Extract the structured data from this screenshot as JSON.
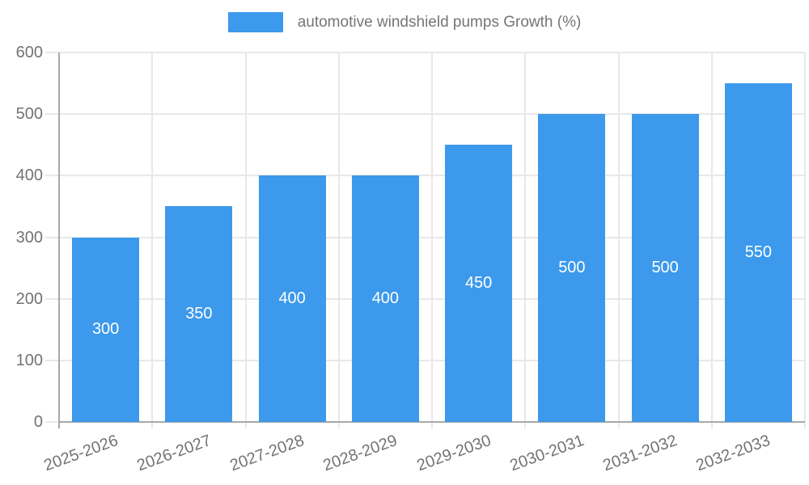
{
  "legend": {
    "label": "automotive windshield pumps Growth (%)"
  },
  "chart_data": {
    "type": "bar",
    "title": "automotive windshield pumps Growth (%)",
    "categories": [
      "2025-2026",
      "2026-2027",
      "2027-2028",
      "2028-2029",
      "2029-2030",
      "2030-2031",
      "2031-2032",
      "2032-2033"
    ],
    "series": [
      {
        "name": "automotive windshield pumps Growth (%)",
        "values": [
          300,
          350,
          400,
          400,
          450,
          500,
          500,
          550
        ]
      }
    ],
    "value_labels_shown": true,
    "xlabel": "",
    "ylabel": "",
    "ylim": [
      0,
      600
    ],
    "ytick_step": 100,
    "yticks": [
      0,
      100,
      200,
      300,
      400,
      500,
      600
    ],
    "grid": true,
    "legend_position": "top",
    "colors": {
      "bar": "#3C99EC",
      "grid": "#E8E8E8",
      "axis": "#A8A8A8",
      "tick_text": "#737373",
      "legend_text": "#757575",
      "value_label_text": "#FFFFFF",
      "background": "#FFFFFF"
    }
  }
}
